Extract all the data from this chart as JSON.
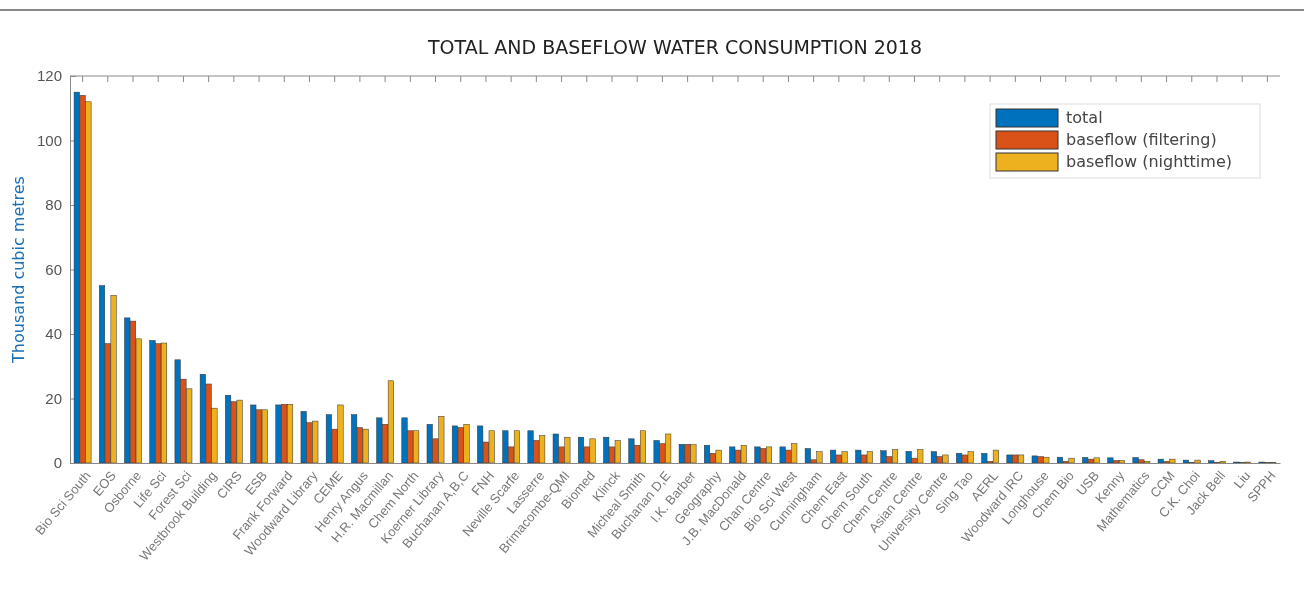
{
  "chart_data": {
    "type": "bar",
    "title": "TOTAL AND BASEFLOW WATER CONSUMPTION 2018",
    "ylabel": "Thousand cubic metres",
    "categories": [
      "Bio Sci South",
      "EOS",
      "Osborne",
      "Life Sci",
      "Forest Sci",
      "Westbrook Building",
      "CIRS",
      "ESB",
      "Frank Forward",
      "Woodward Library",
      "CEME",
      "Henry Angus",
      "H.R. Macmillan",
      "Chem North",
      "Koerner Library",
      "Buchanan A,B,C",
      "FNH",
      "Neville Scarfe",
      "Lasserre",
      "Brimacombe-QMI",
      "Biomed",
      "Klinck",
      "Micheal Smith",
      "Buchanan D,E",
      "I.K. Barber",
      "Geography",
      "J.B. MacDonald",
      "Chan Centre",
      "Bio Sci West",
      "Cunningham",
      "Chem East",
      "Chem South",
      "Chem Centre",
      "Asian Centre",
      "University Centre",
      "Sing Tao",
      "AERL",
      "Woodward IRC",
      "Longhouse",
      "Chem Bio",
      "USB",
      "Kenny",
      "Mathematics",
      "CCM",
      "C.K. Choi",
      "Jack Bell",
      "Liu",
      "SPPH"
    ],
    "series": [
      {
        "name": "total",
        "color": "#0072bd",
        "values": [
          115,
          55,
          45,
          38,
          32,
          27.5,
          21,
          18,
          18,
          16,
          15,
          15,
          14,
          14,
          12,
          11.5,
          11.5,
          10,
          10,
          9,
          8,
          8,
          7.5,
          7,
          5.8,
          5.5,
          5,
          5,
          5,
          4.5,
          4,
          4,
          3.8,
          3.6,
          3.5,
          3,
          3,
          2.5,
          2.2,
          1.8,
          1.7,
          1.6,
          1.7,
          1.2,
          0.9,
          0.7,
          0.3,
          0.3
        ]
      },
      {
        "name": "baseflow (filtering)",
        "color": "#d95319",
        "values": [
          114,
          37,
          44,
          37,
          26,
          24.5,
          19,
          16.5,
          18.2,
          12.5,
          10.5,
          11,
          12,
          10,
          7.5,
          11,
          6.5,
          5,
          7,
          5,
          5,
          5,
          5.5,
          6,
          5.8,
          3,
          4,
          4.5,
          4,
          1,
          2.5,
          2.5,
          2,
          1.5,
          2,
          2.5,
          0.5,
          2.5,
          2,
          0.5,
          1.2,
          0.8,
          1,
          0.5,
          0.2,
          0.2,
          0.1,
          0.1
        ]
      },
      {
        "name": "baseflow (nighttime)",
        "color": "#edb120",
        "values": [
          112,
          52,
          38.5,
          37.2,
          23,
          17,
          19.5,
          16.5,
          18.2,
          13,
          18,
          10.5,
          25.5,
          10,
          14.5,
          12,
          10,
          10,
          8.5,
          8,
          7.5,
          7,
          10,
          9,
          5.7,
          4,
          5.5,
          5,
          6,
          3.5,
          3.5,
          3.5,
          4.2,
          4.2,
          2.5,
          3.5,
          4,
          2.5,
          1.8,
          1.5,
          1.6,
          0.8,
          0.5,
          1.2,
          0.9,
          0.5,
          0.3,
          0.2
        ]
      }
    ],
    "ylim": [
      0,
      120
    ],
    "yticks": [
      0,
      20,
      40,
      60,
      80,
      100,
      120
    ],
    "legend": "top right"
  }
}
